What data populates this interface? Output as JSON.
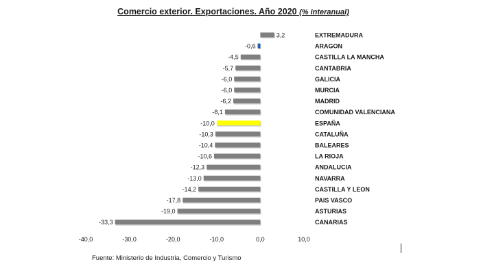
{
  "chart_data": {
    "type": "bar",
    "orientation": "horizontal",
    "title": "Comercio exterior. Exportaciones. Año 2020",
    "subtitle": "(% interanual)",
    "categories": [
      "EXTREMADURA",
      "ARAGON",
      "CASTILLA LA MANCHA",
      "CANTABRIA",
      "GALICIA",
      "MURCIA",
      "MADRID",
      "COMUNIDAD VALENCIANA",
      "ESPAÑA",
      "CATALUÑA",
      "BALEARES",
      "LA RIOJA",
      "ANDALUCIA",
      "NAVARRA",
      "CASTILLA Y LEON",
      "PAIS VASCO",
      "ASTURIAS",
      "CANARIAS"
    ],
    "values": [
      3.2,
      -0.6,
      -4.5,
      -5.7,
      -6.0,
      -6.0,
      -6.2,
      -8.1,
      -10.0,
      -10.3,
      -10.4,
      -10.6,
      -12.3,
      -13.0,
      -14.2,
      -17.8,
      -19.0,
      -33.3
    ],
    "value_labels": [
      "3,2",
      "-0,6",
      "-4,5",
      "-5,7",
      "-6,0",
      "-6,0",
      "-6,2",
      "-8,1",
      "-10,0",
      "-10,3",
      "-10,4",
      "-10,6",
      "-12,3",
      "-13,0",
      "-14,2",
      "-17,8",
      "-19,0",
      "-33,3"
    ],
    "xlim": [
      -40,
      10
    ],
    "x_ticks": [
      -40,
      -30,
      -20,
      -10,
      0,
      10
    ],
    "x_tick_labels": [
      "-40,0",
      "-30,0",
      "-20,0",
      "-10,0",
      "0,0",
      "10,0"
    ],
    "colors": {
      "default": "#7f7f7f",
      "highlight_espana": "#ffff00",
      "highlight_aragon": "#1f5fa8"
    },
    "grid": false,
    "legend": "none"
  },
  "footer": {
    "source": "Fuente: Ministerio de Industria, Comercio y Turismo"
  }
}
